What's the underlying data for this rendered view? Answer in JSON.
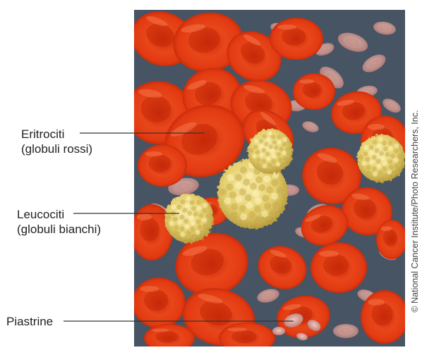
{
  "labels": {
    "eritrociti": {
      "line1": "Eritrociti",
      "line2": "(globuli rossi)"
    },
    "leucociti": {
      "line1": "Leucociti",
      "line2": "(globuli bianchi)"
    },
    "piastrine": {
      "line1": "Piastrine"
    }
  },
  "credit": "© National Cancer Institute/Photo Researchers, Inc.",
  "colors": {
    "background_tissue": "#4d5b6c",
    "red_cell": "#e23a12",
    "red_cell_dark": "#b52205",
    "white_cell": "#e9d77a",
    "white_cell_dark": "#c9b04a",
    "platelet": "#d9a39a",
    "leader_line": "#333333"
  }
}
